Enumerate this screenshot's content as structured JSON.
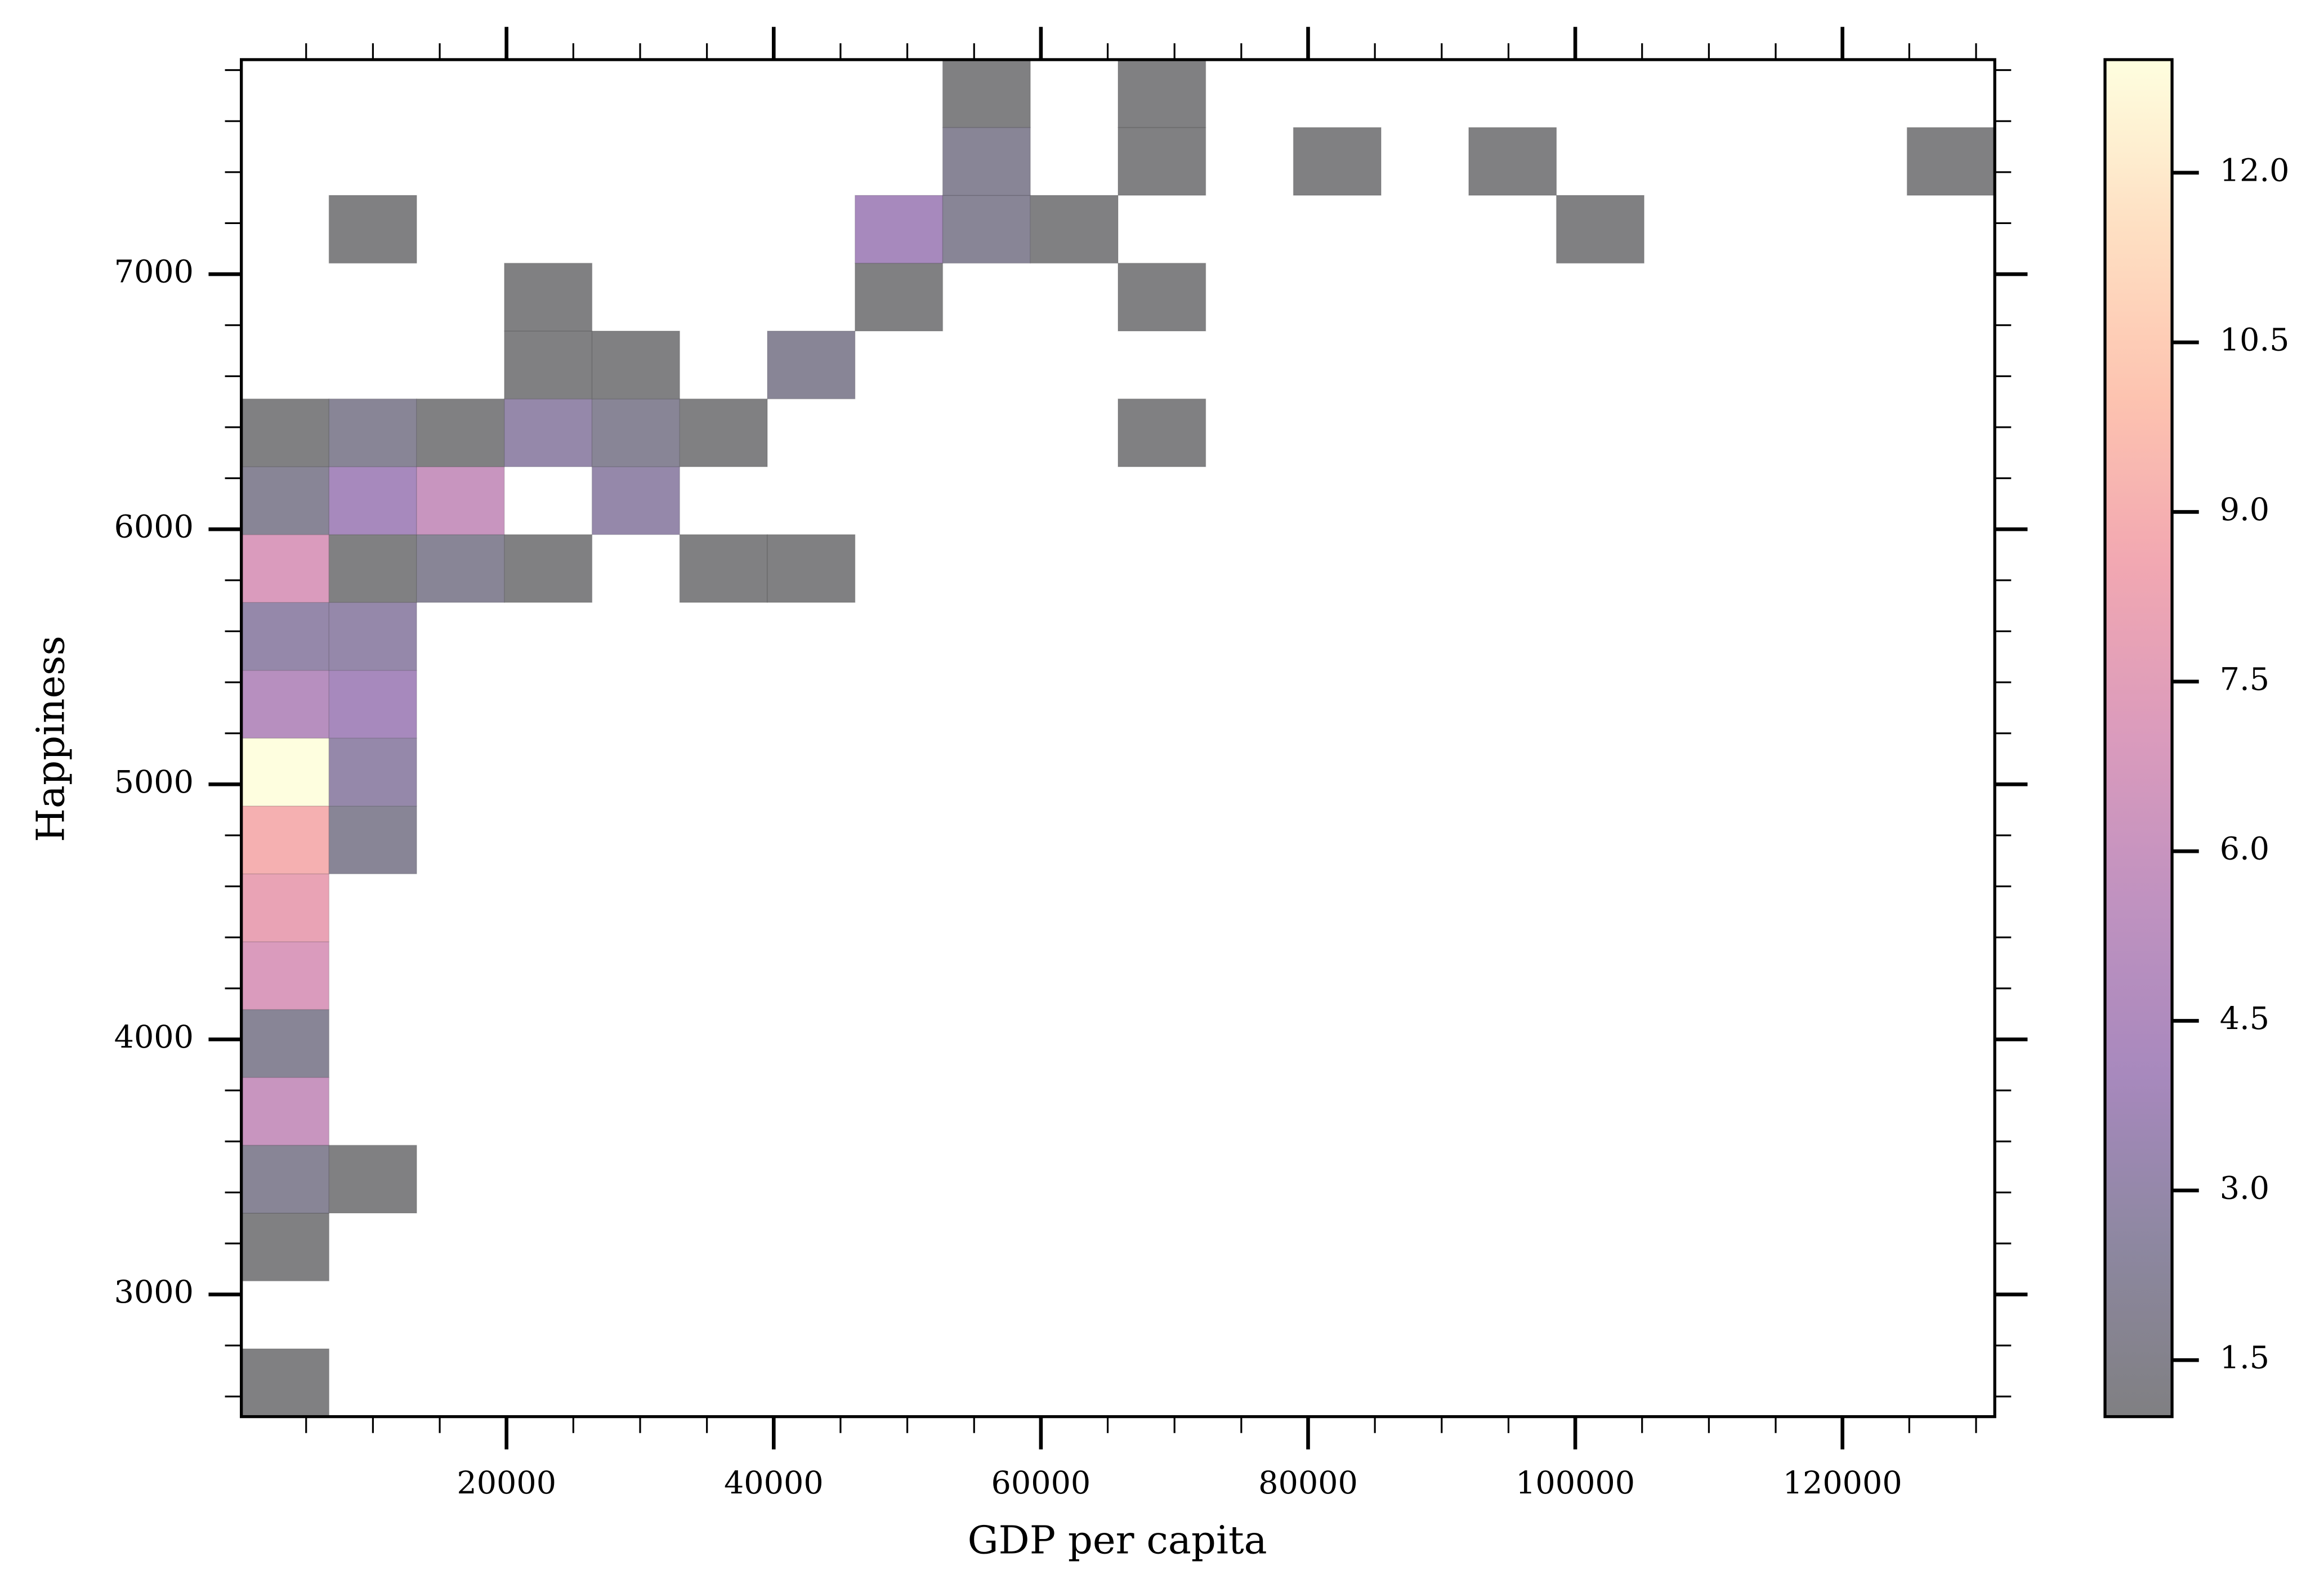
{
  "chart_data": {
    "type": "hist2d",
    "x_label": "GDP per capita",
    "y_label": "Happiness",
    "x_bins": [
      150,
      6712.5,
      13275,
      19837.5,
      26400,
      32962.5,
      39525,
      46087.5,
      52650,
      59212.5,
      65775,
      72337.5,
      78900,
      85462.5,
      92025,
      98587.5,
      105150,
      111712.5,
      118275,
      124837.5,
      131400
    ],
    "y_bins": [
      2521,
      2787,
      3053,
      3319,
      3585,
      3851,
      4117,
      4383,
      4649,
      4915,
      5181,
      5447,
      5713,
      5979,
      6245,
      6511,
      6777,
      7043,
      7309,
      7575,
      7841
    ],
    "counts": [
      [
        1,
        null,
        null,
        null,
        null,
        null,
        null,
        null,
        null,
        null,
        null,
        null,
        null,
        null,
        null,
        null,
        null,
        null,
        null,
        null
      ],
      [
        null,
        null,
        null,
        null,
        null,
        null,
        null,
        null,
        null,
        null,
        null,
        null,
        null,
        null,
        null,
        null,
        null,
        null,
        null,
        null
      ],
      [
        1,
        null,
        null,
        null,
        null,
        null,
        null,
        null,
        null,
        null,
        null,
        null,
        null,
        null,
        null,
        null,
        null,
        null,
        null,
        null
      ],
      [
        2,
        1,
        null,
        null,
        null,
        null,
        null,
        null,
        null,
        null,
        null,
        null,
        null,
        null,
        null,
        null,
        null,
        null,
        null,
        null
      ],
      [
        6,
        null,
        null,
        null,
        null,
        null,
        null,
        null,
        null,
        null,
        null,
        null,
        null,
        null,
        null,
        null,
        null,
        null,
        null,
        null
      ],
      [
        2,
        null,
        null,
        null,
        null,
        null,
        null,
        null,
        null,
        null,
        null,
        null,
        null,
        null,
        null,
        null,
        null,
        null,
        null,
        null
      ],
      [
        7,
        null,
        null,
        null,
        null,
        null,
        null,
        null,
        null,
        null,
        null,
        null,
        null,
        null,
        null,
        null,
        null,
        null,
        null,
        null
      ],
      [
        8,
        null,
        null,
        null,
        null,
        null,
        null,
        null,
        null,
        null,
        null,
        null,
        null,
        null,
        null,
        null,
        null,
        null,
        null,
        null
      ],
      [
        9,
        2,
        null,
        null,
        null,
        null,
        null,
        null,
        null,
        null,
        null,
        null,
        null,
        null,
        null,
        null,
        null,
        null,
        null,
        null
      ],
      [
        13,
        3,
        null,
        null,
        null,
        null,
        null,
        null,
        null,
        null,
        null,
        null,
        null,
        null,
        null,
        null,
        null,
        null,
        null,
        null
      ],
      [
        5,
        4,
        null,
        null,
        null,
        null,
        null,
        null,
        null,
        null,
        null,
        null,
        null,
        null,
        null,
        null,
        null,
        null,
        null,
        null
      ],
      [
        3,
        3,
        null,
        null,
        null,
        null,
        null,
        null,
        null,
        null,
        null,
        null,
        null,
        null,
        null,
        null,
        null,
        null,
        null,
        null
      ],
      [
        7,
        1,
        2,
        1,
        null,
        1,
        1,
        null,
        null,
        null,
        null,
        null,
        null,
        null,
        null,
        null,
        null,
        null,
        null,
        null
      ],
      [
        2,
        4,
        6,
        null,
        3,
        null,
        null,
        null,
        null,
        null,
        null,
        null,
        null,
        null,
        null,
        null,
        null,
        null,
        null,
        null
      ],
      [
        1,
        2,
        1,
        3,
        2,
        1,
        null,
        null,
        null,
        null,
        1,
        null,
        null,
        null,
        null,
        null,
        null,
        null,
        null,
        null
      ],
      [
        null,
        null,
        null,
        1,
        1,
        null,
        2,
        null,
        null,
        null,
        null,
        null,
        null,
        null,
        null,
        null,
        null,
        null,
        null,
        null
      ],
      [
        null,
        null,
        null,
        1,
        null,
        null,
        null,
        1,
        null,
        null,
        1,
        null,
        null,
        null,
        null,
        null,
        null,
        null,
        null,
        null
      ],
      [
        null,
        1,
        null,
        null,
        null,
        null,
        null,
        4,
        2,
        1,
        null,
        null,
        null,
        null,
        null,
        1,
        null,
        null,
        null,
        null
      ],
      [
        null,
        null,
        null,
        null,
        null,
        null,
        null,
        null,
        2,
        null,
        1,
        null,
        1,
        null,
        1,
        null,
        null,
        null,
        null,
        1
      ],
      [
        null,
        null,
        null,
        null,
        null,
        null,
        null,
        null,
        1,
        null,
        1,
        null,
        null,
        null,
        null,
        null,
        null,
        null,
        null,
        null
      ]
    ],
    "xlim": [
      150,
      131400
    ],
    "ylim": [
      2521,
      7841
    ],
    "xticks": [
      20000,
      40000,
      60000,
      80000,
      100000,
      120000
    ],
    "yticks": [
      3000,
      4000,
      5000,
      6000,
      7000
    ],
    "x_minor_ticks": [
      5000,
      10000,
      15000,
      25000,
      30000,
      35000,
      45000,
      50000,
      55000,
      65000,
      70000,
      75000,
      85000,
      90000,
      95000,
      105000,
      110000,
      115000,
      125000,
      130000
    ],
    "y_minor_ticks": [
      2600,
      2800,
      3200,
      3400,
      3600,
      3800,
      4200,
      4400,
      4600,
      4800,
      5200,
      5400,
      5600,
      5800,
      6200,
      6400,
      6600,
      6800,
      7200,
      7400,
      7600,
      7800
    ],
    "cmap": "magma",
    "alpha": 0.5,
    "clim": [
      1,
      13
    ],
    "cticks": [
      1.5,
      {
        "value": 3,
        "label": "3.0"
      },
      4.5,
      {
        "value": 6,
        "label": "6.0"
      },
      7.5,
      {
        "value": 9,
        "label": "9.0"
      },
      10.5,
      {
        "value": 12,
        "label": "12.0"
      }
    ]
  }
}
